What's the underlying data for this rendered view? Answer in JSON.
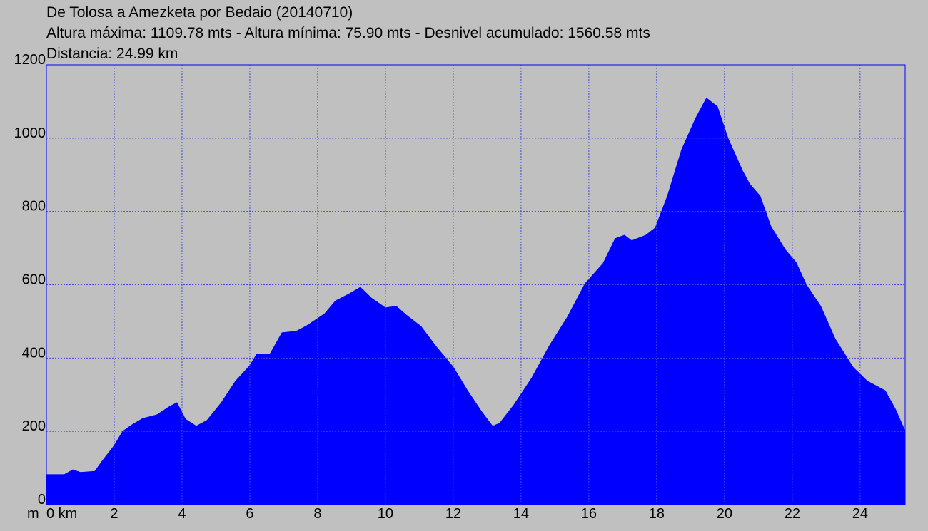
{
  "chart_data": {
    "type": "area",
    "title": "De Tolosa a Amezketa por Bedaio (20140710)",
    "subtitle": "Altura máxima: 1109.78 mts - Altura mínima: 75.90 mts - Desnivel acumulado: 1560.58 mts",
    "subtitle2": "Distancia: 24.99 km",
    "y_label": "m",
    "color": "#0000ff",
    "grid": true,
    "xlim": [
      0,
      25.33
    ],
    "ylim": [
      0,
      1200
    ],
    "xticks": [
      {
        "value": 0,
        "label": "0 km"
      },
      2,
      4,
      6,
      8,
      10,
      12,
      14,
      16,
      18,
      20,
      22,
      24
    ],
    "yticks": [
      0,
      200,
      400,
      600,
      800,
      1000,
      1200
    ],
    "x": [
      0,
      0.53,
      0.78,
      1.0,
      1.43,
      1.68,
      2.0,
      2.25,
      2.53,
      2.84,
      3.26,
      3.64,
      3.85,
      4.1,
      4.42,
      4.74,
      5.16,
      5.58,
      6.0,
      6.2,
      6.59,
      6.95,
      7.37,
      7.68,
      8.21,
      8.53,
      8.95,
      9.26,
      9.58,
      10.0,
      10.32,
      10.63,
      11.05,
      11.47,
      12.0,
      12.42,
      12.84,
      13.16,
      13.37,
      13.79,
      14.32,
      14.84,
      15.37,
      15.89,
      16.42,
      16.78,
      17.05,
      17.26,
      17.68,
      17.96,
      18.32,
      18.74,
      19.16,
      19.47,
      19.79,
      20.11,
      20.53,
      20.74,
      21.05,
      21.37,
      21.79,
      22.11,
      22.42,
      22.84,
      23.26,
      23.79,
      24.21,
      24.74,
      25.05,
      25.33
    ],
    "y": [
      82,
      82,
      95,
      88,
      91,
      123,
      161,
      200,
      218,
      235,
      245,
      268,
      278,
      233,
      214,
      230,
      278,
      337,
      379,
      410,
      410,
      469,
      473,
      488,
      521,
      556,
      576,
      593,
      564,
      537,
      541,
      516,
      486,
      434,
      375,
      311,
      253,
      214,
      222,
      272,
      346,
      434,
      512,
      603,
      658,
      726,
      735,
      720,
      735,
      755,
      842,
      969,
      1056,
      1109,
      1086,
      998,
      911,
      875,
      842,
      759,
      696,
      661,
      599,
      541,
      453,
      375,
      337,
      311,
      259,
      200
    ]
  }
}
